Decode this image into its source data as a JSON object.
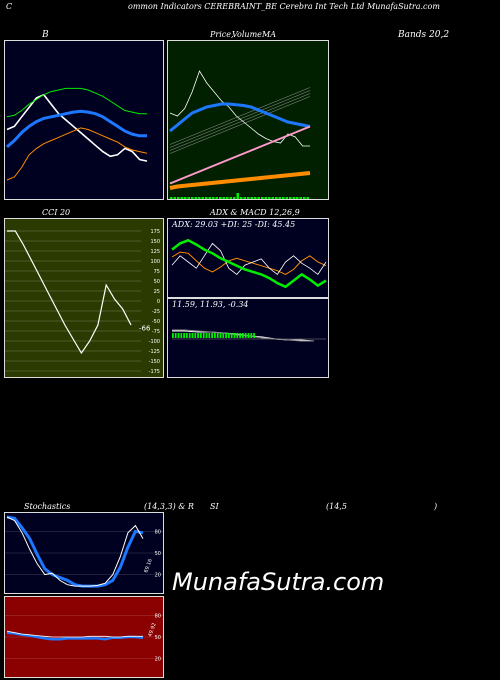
{
  "header": {
    "title_c": "C",
    "title_rest": "ommon  Indicators CEREBRAINT_BE Cerebra  Int Tech Ltd MunafaSutra.com"
  },
  "labels": {
    "b": "B",
    "price_a": "Price,",
    "price_b": "Volume",
    "price_c": "MA",
    "bands": "Bands 20,2",
    "cci": "CCI 20",
    "adx_title": "ADX  & MACD 12,26,9",
    "stoch_a": "Stochastics",
    "stoch_b": "(14,3,3) & R",
    "stoch_c": "SI",
    "stoch_d": "(14,5",
    "stoch_e": ")"
  },
  "watermark": "MunafaSutra.com",
  "colors": {
    "bands_bg": "#000020",
    "price_bg": "#002000",
    "cci_bg": "#2a3a00",
    "adx_bg": "#000020",
    "stoch_bg": "#000020",
    "rsi_bg": "#8b0000",
    "blue": "#1e78ff",
    "green": "#00ee00",
    "orange": "#ff8c00",
    "pink": "#ff99cc"
  },
  "chart_data": [
    {
      "type": "line",
      "name": "bollinger",
      "x": [
        0,
        1,
        2,
        3,
        4,
        5,
        6,
        7,
        8,
        9,
        10,
        11,
        12,
        13,
        14,
        15,
        16,
        17,
        18,
        19
      ],
      "series": [
        {
          "values": [
            0.44,
            0.46,
            0.52,
            0.58,
            0.64,
            0.66,
            0.6,
            0.54,
            0.5,
            0.46,
            0.42,
            0.38,
            0.34,
            0.3,
            0.27,
            0.28,
            0.32,
            0.3,
            0.25,
            0.24
          ]
        },
        {
          "values": [
            0.33,
            0.37,
            0.42,
            0.46,
            0.49,
            0.51,
            0.52,
            0.53,
            0.54,
            0.55,
            0.555,
            0.55,
            0.54,
            0.52,
            0.49,
            0.46,
            0.43,
            0.41,
            0.4,
            0.4
          ]
        },
        {
          "values": [
            0.52,
            0.53,
            0.56,
            0.6,
            0.63,
            0.66,
            0.68,
            0.69,
            0.7,
            0.7,
            0.7,
            0.69,
            0.67,
            0.65,
            0.62,
            0.59,
            0.56,
            0.55,
            0.54,
            0.54
          ]
        },
        {
          "values": [
            0.12,
            0.14,
            0.2,
            0.28,
            0.32,
            0.35,
            0.37,
            0.39,
            0.41,
            0.43,
            0.45,
            0.44,
            0.42,
            0.4,
            0.38,
            0.36,
            0.33,
            0.31,
            0.3,
            0.29
          ]
        }
      ]
    },
    {
      "type": "line",
      "name": "price-volume-ma",
      "x": [
        0,
        1,
        2,
        3,
        4,
        5,
        6,
        7,
        8,
        9,
        10,
        11,
        12,
        13,
        14,
        15,
        16,
        17,
        18,
        19
      ],
      "series": [
        {
          "values": [
            0.52,
            0.5,
            0.55,
            0.66,
            0.8,
            0.72,
            0.66,
            0.6,
            0.56,
            0.5,
            0.46,
            0.42,
            0.38,
            0.35,
            0.33,
            0.32,
            0.38,
            0.36,
            0.3,
            0.3
          ]
        },
        {
          "values": [
            0.4,
            0.44,
            0.48,
            0.52,
            0.54,
            0.56,
            0.57,
            0.58,
            0.58,
            0.575,
            0.57,
            0.56,
            0.54,
            0.52,
            0.5,
            0.48,
            0.46,
            0.45,
            0.44,
            0.43
          ]
        },
        {
          "values": [
            0.05,
            0.07,
            0.09,
            0.11,
            0.13,
            0.15,
            0.17,
            0.19,
            0.21,
            0.23,
            0.25,
            0.27,
            0.29,
            0.31,
            0.33,
            0.35,
            0.37,
            0.39,
            0.41,
            0.43
          ]
        },
        {
          "values": [
            0.02,
            0.03,
            0.035,
            0.04,
            0.045,
            0.05,
            0.055,
            0.06,
            0.065,
            0.07,
            0.075,
            0.08,
            0.085,
            0.09,
            0.095,
            0.1,
            0.105,
            0.11,
            0.115,
            0.12
          ]
        }
      ]
    },
    {
      "type": "line",
      "name": "cci",
      "ylim": [
        -175,
        175
      ],
      "yticks": [
        "175",
        "150",
        "125",
        "100",
        "75",
        "50",
        "25",
        "0",
        "-25",
        "-50",
        "-75",
        "-100",
        "-125",
        "-150",
        "-175"
      ],
      "values": [
        175,
        175,
        140,
        100,
        60,
        20,
        -20,
        -60,
        -95,
        -130,
        -100,
        -60,
        40,
        5,
        -20,
        -60
      ],
      "last_label": "-66"
    },
    {
      "type": "line",
      "name": "adx",
      "text": "ADX: 29.03  +DI: 25  -DI: 45.45",
      "series": [
        {
          "values": [
            58,
            66,
            64,
            52,
            40,
            34,
            42,
            52,
            56,
            52,
            48,
            44,
            40,
            36,
            30,
            38,
            52,
            60,
            50,
            44
          ]
        },
        {
          "values": [
            45,
            60,
            50,
            40,
            60,
            80,
            68,
            40,
            30,
            45,
            50,
            55,
            40,
            30,
            50,
            60,
            48,
            40,
            30,
            50
          ]
        },
        {
          "values": [
            70,
            80,
            85,
            78,
            70,
            64,
            56,
            50,
            44,
            38,
            34,
            30,
            24,
            16,
            10,
            20,
            30,
            22,
            12,
            20
          ]
        }
      ]
    },
    {
      "type": "line",
      "name": "macd",
      "text": "11.59,  11.93,  -0.34"
    },
    {
      "type": "line",
      "name": "stochastics",
      "yticks": [
        "80",
        "50",
        "20"
      ],
      "ylim": [
        0,
        100
      ],
      "series": [
        {
          "values": [
            100,
            95,
            78,
            55,
            35,
            20,
            22,
            12,
            6,
            4,
            4,
            4,
            5,
            8,
            20,
            45,
            78,
            88,
            70
          ]
        },
        {
          "values": [
            100,
            98,
            85,
            70,
            48,
            28,
            20,
            16,
            12,
            6,
            4,
            4,
            4,
            6,
            12,
            30,
            58,
            80,
            78
          ]
        }
      ],
      "side_label": "69.16"
    },
    {
      "type": "line",
      "name": "rsi",
      "yticks": [
        "80",
        "50",
        "20"
      ],
      "ylim": [
        0,
        100
      ],
      "series": [
        {
          "values": [
            58,
            56,
            54,
            53,
            52,
            51,
            50,
            50,
            50,
            50,
            50,
            51,
            51,
            51,
            50,
            50,
            51,
            51,
            51
          ]
        },
        {
          "values": [
            56,
            55,
            53,
            52,
            50,
            48,
            47,
            47,
            48,
            48,
            48,
            48,
            48,
            47,
            49,
            49,
            50,
            50,
            49
          ]
        }
      ],
      "side_label": "49.92"
    }
  ]
}
